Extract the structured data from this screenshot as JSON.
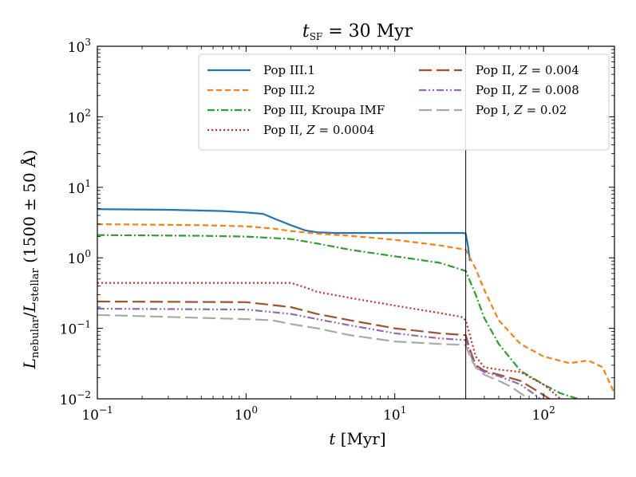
{
  "chart_data": {
    "type": "line",
    "title": {
      "italic": "t",
      "sub": "SF",
      "rest": " = 30 Myr"
    },
    "xlabel": {
      "italic": "t",
      "rest": " [Myr]"
    },
    "ylabel": {
      "L1": "L",
      "s1": "nebular",
      "slash": "/",
      "L2": "L",
      "s2": "stellar",
      "rest": " (1500 ± 50 Å)"
    },
    "x_scale": "log",
    "y_scale": "log",
    "xlim": [
      0.1,
      300
    ],
    "ylim": [
      0.01,
      1000
    ],
    "x_ticks": [
      {
        "value": 0.1,
        "base": "10",
        "exp": "−1"
      },
      {
        "value": 1,
        "base": "10",
        "exp": "0"
      },
      {
        "value": 10,
        "base": "10",
        "exp": "1"
      },
      {
        "value": 100,
        "base": "10",
        "exp": "2"
      }
    ],
    "y_ticks": [
      {
        "value": 0.01,
        "base": "10",
        "exp": "−2"
      },
      {
        "value": 0.1,
        "base": "10",
        "exp": "−1"
      },
      {
        "value": 1,
        "base": "10",
        "exp": "0"
      },
      {
        "value": 10,
        "base": "10",
        "exp": "1"
      },
      {
        "value": 100,
        "base": "10",
        "exp": "2"
      },
      {
        "value": 1000,
        "base": "10",
        "exp": "3"
      }
    ],
    "vertical_line_x": 30,
    "legend_position": "upper-right",
    "series": [
      {
        "name": "Pop III.1",
        "label": {
          "pre": "Pop III.1",
          "italic": "",
          "post": ""
        },
        "color": "#1f77b4",
        "dash": "solid",
        "x": [
          0.1,
          0.3,
          0.7,
          1.0,
          1.3,
          1.6,
          2.0,
          2.5,
          3.0,
          4.0,
          10,
          20,
          29,
          30,
          31,
          32
        ],
        "y": [
          4.9,
          4.8,
          4.6,
          4.4,
          4.2,
          3.5,
          2.9,
          2.45,
          2.3,
          2.25,
          2.25,
          2.25,
          2.25,
          2.2,
          1.5,
          0.9
        ]
      },
      {
        "name": "Pop III.2",
        "label": {
          "pre": "Pop III.2",
          "italic": "",
          "post": ""
        },
        "color": "#ff7f0e",
        "dash": "dashed",
        "x": [
          0.1,
          0.5,
          1.0,
          1.5,
          2.0,
          3.0,
          5.0,
          10,
          20,
          30,
          35,
          40,
          50,
          70,
          100,
          150,
          200,
          250,
          300
        ],
        "y": [
          3.0,
          2.9,
          2.8,
          2.6,
          2.4,
          2.2,
          2.05,
          1.8,
          1.5,
          1.3,
          0.7,
          0.35,
          0.13,
          0.06,
          0.04,
          0.032,
          0.035,
          0.028,
          0.012
        ]
      },
      {
        "name": "Pop III, Kroupa IMF",
        "label": {
          "pre": "Pop III, Kroupa IMF",
          "italic": "",
          "post": ""
        },
        "color": "#2ca02c",
        "dash": "dashdot",
        "x": [
          0.1,
          0.5,
          1.0,
          2.0,
          3.0,
          5.0,
          10,
          20,
          30,
          35,
          40,
          50,
          70,
          100,
          130,
          170
        ],
        "y": [
          2.1,
          2.05,
          2.0,
          1.85,
          1.6,
          1.3,
          1.05,
          0.85,
          0.65,
          0.3,
          0.14,
          0.06,
          0.025,
          0.016,
          0.012,
          0.01
        ]
      },
      {
        "name": "Pop II, Z = 0.0004",
        "label": {
          "pre": "Pop II, ",
          "italic": "Z",
          "post": " = 0.0004"
        },
        "color": "#d62728",
        "dash": "dotted",
        "x": [
          0.1,
          1.0,
          2.0,
          2.5,
          3.0,
          5.0,
          10,
          20,
          28,
          30,
          32,
          35,
          40,
          50,
          70,
          100,
          130
        ],
        "y": [
          0.44,
          0.44,
          0.44,
          0.38,
          0.33,
          0.27,
          0.21,
          0.165,
          0.145,
          0.13,
          0.08,
          0.04,
          0.028,
          0.026,
          0.024,
          0.016,
          0.01
        ]
      },
      {
        "name": "Pop II, Z = 0.004",
        "label": {
          "pre": "Pop II, ",
          "italic": "Z",
          "post": " = 0.004"
        },
        "color": "#a0522d",
        "dash": "longdash",
        "x": [
          0.1,
          1.0,
          2.0,
          3.0,
          5.0,
          10,
          20,
          30,
          32,
          35,
          40,
          50,
          70,
          90,
          110
        ],
        "y": [
          0.24,
          0.235,
          0.2,
          0.16,
          0.13,
          0.1,
          0.085,
          0.08,
          0.05,
          0.03,
          0.025,
          0.022,
          0.018,
          0.013,
          0.01
        ]
      },
      {
        "name": "Pop II, Z = 0.008",
        "label": {
          "pre": "Pop II, ",
          "italic": "Z",
          "post": " = 0.008"
        },
        "color": "#9467bd",
        "dash": "dashdotdot",
        "x": [
          0.1,
          1.0,
          2.0,
          3.0,
          5.0,
          10,
          20,
          30,
          32,
          35,
          40,
          50,
          70,
          85,
          95
        ],
        "y": [
          0.19,
          0.185,
          0.16,
          0.135,
          0.11,
          0.085,
          0.072,
          0.068,
          0.045,
          0.028,
          0.024,
          0.021,
          0.016,
          0.012,
          0.01
        ]
      },
      {
        "name": "Pop I, Z = 0.02",
        "label": {
          "pre": "Pop I, ",
          "italic": "Z",
          "post": " = 0.02"
        },
        "color": "#a9a9a9",
        "dash": "longdash",
        "x": [
          0.1,
          1.0,
          1.5,
          2.0,
          3.0,
          5.0,
          10,
          20,
          30,
          32,
          35,
          40,
          50,
          60,
          70,
          80
        ],
        "y": [
          0.155,
          0.135,
          0.13,
          0.115,
          0.1,
          0.08,
          0.065,
          0.06,
          0.058,
          0.04,
          0.028,
          0.022,
          0.018,
          0.015,
          0.012,
          0.01
        ]
      }
    ]
  }
}
